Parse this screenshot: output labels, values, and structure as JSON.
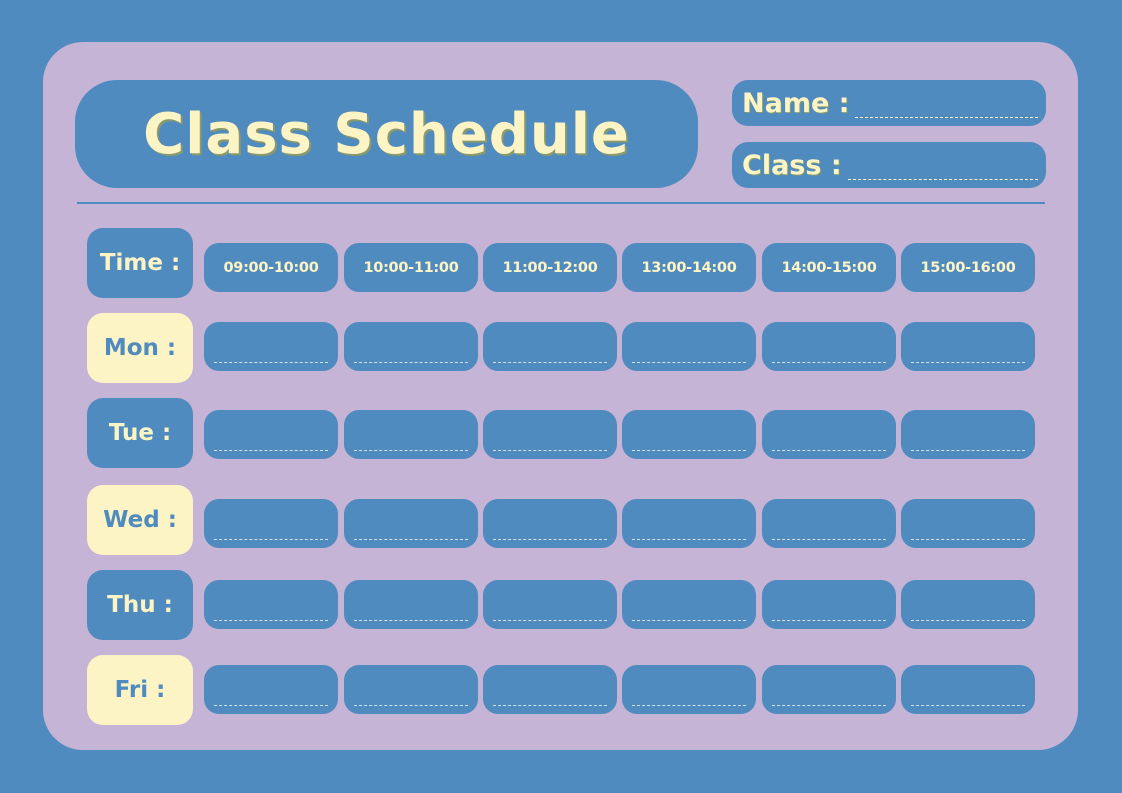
{
  "title": "Class Schedule",
  "fields": {
    "name_label": "Name :",
    "class_label": "Class :"
  },
  "time_label": "Time :",
  "time_slots": [
    "09:00-10:00",
    "10:00-11:00",
    "11:00-12:00",
    "13:00-14:00",
    "14:00-15:00",
    "15:00-16:00"
  ],
  "days": [
    "Mon :",
    "Tue :",
    "Wed :",
    "Thu :",
    "Fri :"
  ],
  "colors": {
    "background": "#4f8bbf",
    "card": "#c5b4d6",
    "accent_yellow": "#fdf4c6"
  }
}
